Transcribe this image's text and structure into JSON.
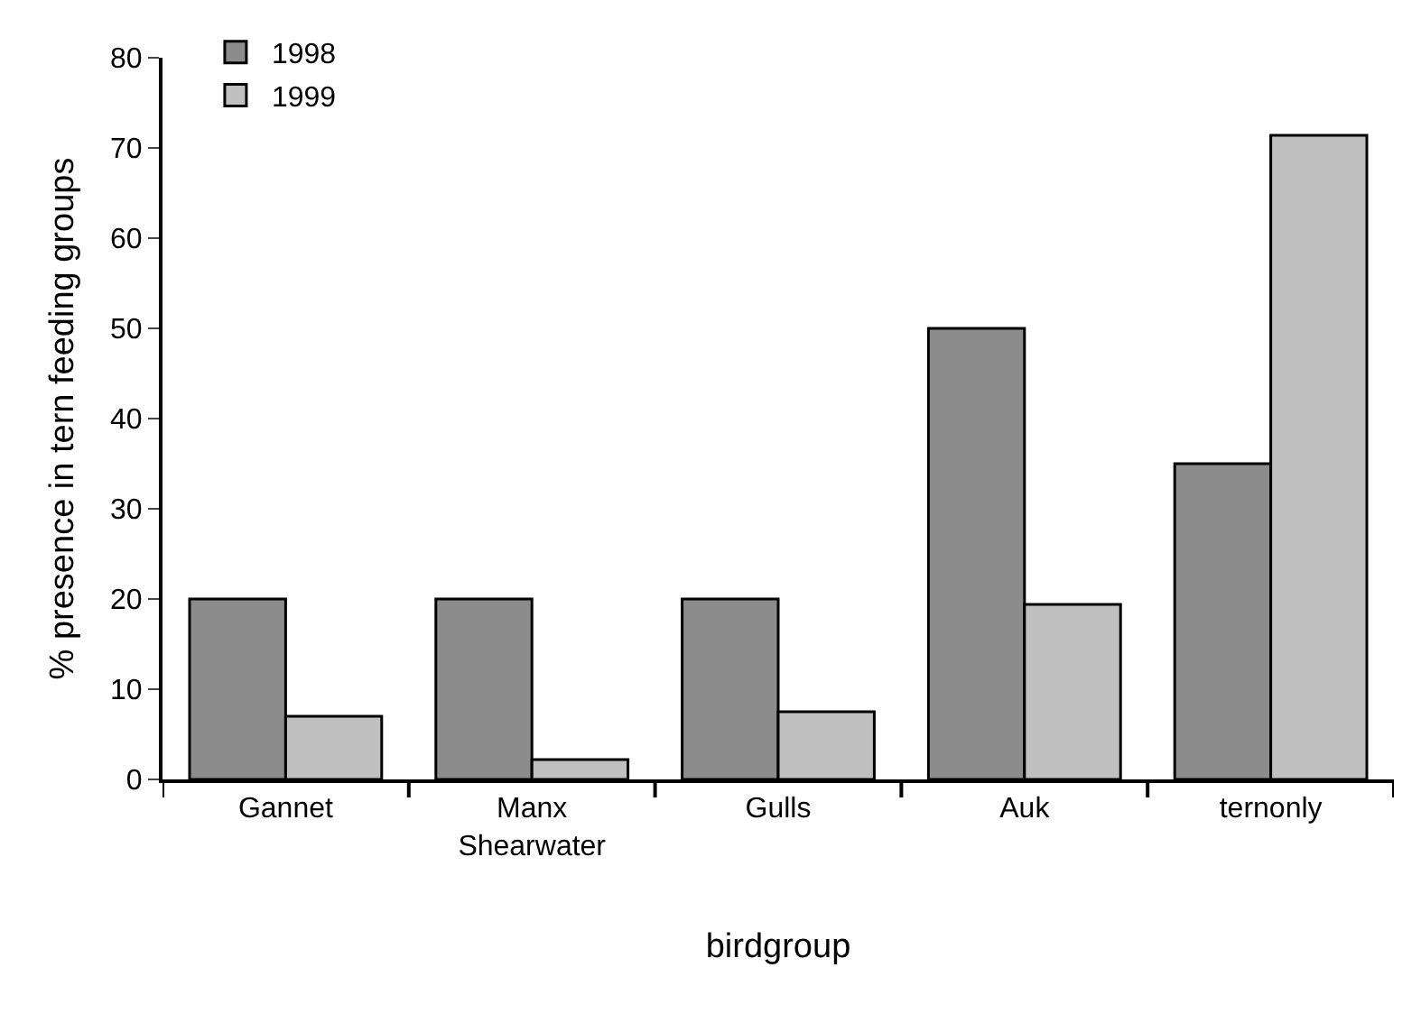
{
  "chart_data": {
    "type": "bar",
    "xlabel": "birdgroup",
    "ylabel": "% presence in tern feeding groups",
    "categories": [
      "Gannet",
      "Manx Shearwater",
      "Gulls",
      "Auk",
      "ternonly"
    ],
    "series": [
      {
        "name": "1998",
        "color": "#8c8c8c",
        "values": [
          20,
          20,
          20,
          50,
          35
        ]
      },
      {
        "name": "1999",
        "color": "#c0c0c0",
        "values": [
          7.0,
          2.2,
          7.5,
          19.4,
          71.4
        ]
      }
    ],
    "ylim": [
      0,
      80
    ],
    "yticks": [
      0,
      10,
      20,
      30,
      40,
      50,
      60,
      70,
      80
    ],
    "legend": "top left"
  }
}
